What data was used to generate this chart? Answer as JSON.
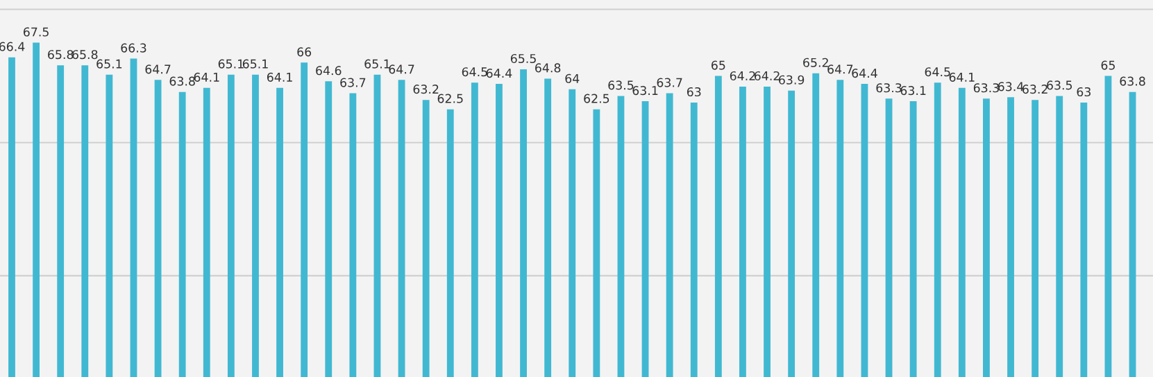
{
  "chart_data": {
    "type": "bar",
    "categories": [
      null,
      null,
      null,
      null,
      null,
      null,
      null,
      null,
      null,
      null,
      null,
      null,
      null,
      null,
      null,
      null,
      null,
      null,
      null,
      null,
      null,
      null,
      null,
      null,
      null,
      null,
      null,
      null,
      null,
      null,
      null,
      null,
      null,
      null,
      null,
      null,
      null,
      null,
      null,
      null,
      null,
      null,
      null,
      null,
      null,
      null,
      null
    ],
    "values": [
      66.4,
      67.5,
      65.8,
      65.8,
      65.1,
      66.3,
      64.7,
      63.8,
      64.1,
      65.1,
      65.1,
      64.1,
      66,
      64.6,
      63.7,
      65.1,
      64.7,
      63.2,
      62.5,
      64.5,
      64.4,
      65.5,
      64.8,
      64,
      62.5,
      63.5,
      63.1,
      63.7,
      63,
      65,
      64.2,
      64.2,
      63.9,
      65.2,
      64.7,
      64.4,
      63.3,
      63.1,
      64.5,
      64.1,
      63.3,
      63.4,
      63.2,
      63.5,
      63,
      65,
      63.8
    ],
    "color": "#41b8d2",
    "ylim": [
      42.4,
      70.7
    ],
    "yticks": [
      {
        "value": 50,
        "label": null
      },
      {
        "value": 60,
        "label": null
      },
      {
        "value": 70,
        "label": null
      }
    ],
    "grid": "y",
    "data_labels": true
  }
}
